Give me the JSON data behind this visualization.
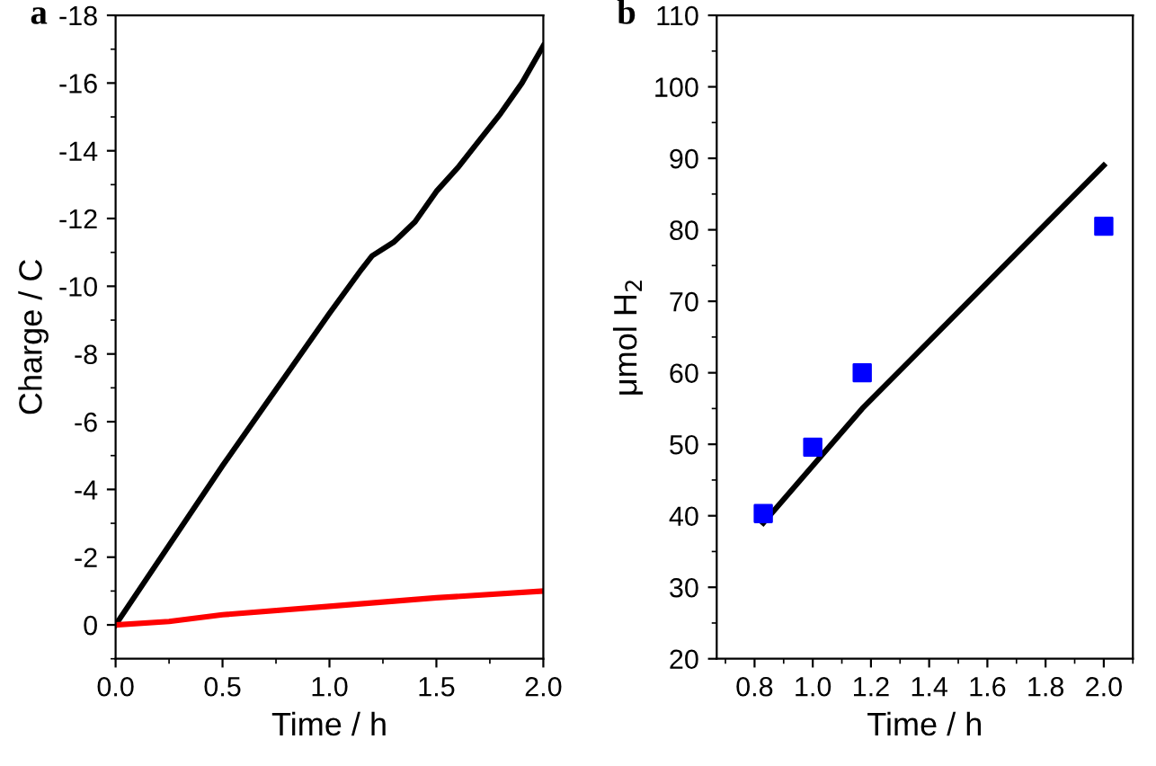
{
  "chart_data": [
    {
      "type": "line",
      "annotations": [
        "a"
      ],
      "xlabel": "Time / h",
      "ylabel": "Charge / C",
      "xlim": [
        0,
        2
      ],
      "xticks": [
        {
          "value": 0,
          "label": "0.0"
        },
        {
          "value": 0.5,
          "label": "0.5"
        },
        {
          "value": 1,
          "label": "1.0"
        },
        {
          "value": 1.5,
          "label": "1.5"
        },
        {
          "value": 2,
          "label": "2.0"
        }
      ],
      "ylim": [
        1,
        -18
      ],
      "yticks": [
        0,
        -2,
        -4,
        -6,
        -8,
        -10,
        -12,
        -14,
        -16,
        -18
      ],
      "grid": false,
      "legend": false,
      "marker": "none",
      "line_style": "solid",
      "series": [
        {
          "color": "#000000",
          "x": [
            0,
            0.5,
            1.0,
            1.15,
            1.2,
            1.3,
            1.4,
            1.5,
            1.6,
            1.7,
            1.8,
            1.9,
            2.0
          ],
          "values": [
            0,
            -4.7,
            -9.2,
            -10.5,
            -10.9,
            -11.3,
            -11.9,
            -12.8,
            -13.5,
            -14.3,
            -15.1,
            -16.0,
            -17.1
          ]
        },
        {
          "color": "#ff0000",
          "x": [
            0,
            0.25,
            0.5,
            1.0,
            1.5,
            2.0
          ],
          "values": [
            0,
            -0.1,
            -0.3,
            -0.55,
            -0.8,
            -1.0
          ]
        }
      ]
    },
    {
      "type": "scatter",
      "annotations": [
        "b"
      ],
      "xlabel": "Time / h",
      "ylabel": "μmol H$_{2}$",
      "xlim": [
        0.67,
        2.1
      ],
      "xticks": [
        {
          "value": 0.8,
          "label": "0.8"
        },
        {
          "value": 1.0,
          "label": "1.0"
        },
        {
          "value": 1.2,
          "label": "1.2"
        },
        {
          "value": 1.4,
          "label": "1.4"
        },
        {
          "value": 1.6,
          "label": "1.6"
        },
        {
          "value": 1.8,
          "label": "1.8"
        },
        {
          "value": 2.0,
          "label": "2.0"
        }
      ],
      "ylim": [
        20,
        110
      ],
      "yticks": [
        20,
        30,
        40,
        50,
        60,
        70,
        80,
        90,
        100,
        110
      ],
      "grid": false,
      "legend": false,
      "series": [
        {
          "type": "scatter",
          "marker": "square",
          "color": "#0000ff",
          "x": [
            0.83,
            1.0,
            1.17,
            2.0
          ],
          "values": [
            40.3,
            49.6,
            60,
            80.5
          ]
        },
        {
          "type": "line",
          "marker": "none",
          "color": "#000000",
          "x": [
            0.83,
            1.17,
            2.0
          ],
          "values": [
            39,
            55,
            89
          ]
        }
      ]
    }
  ]
}
